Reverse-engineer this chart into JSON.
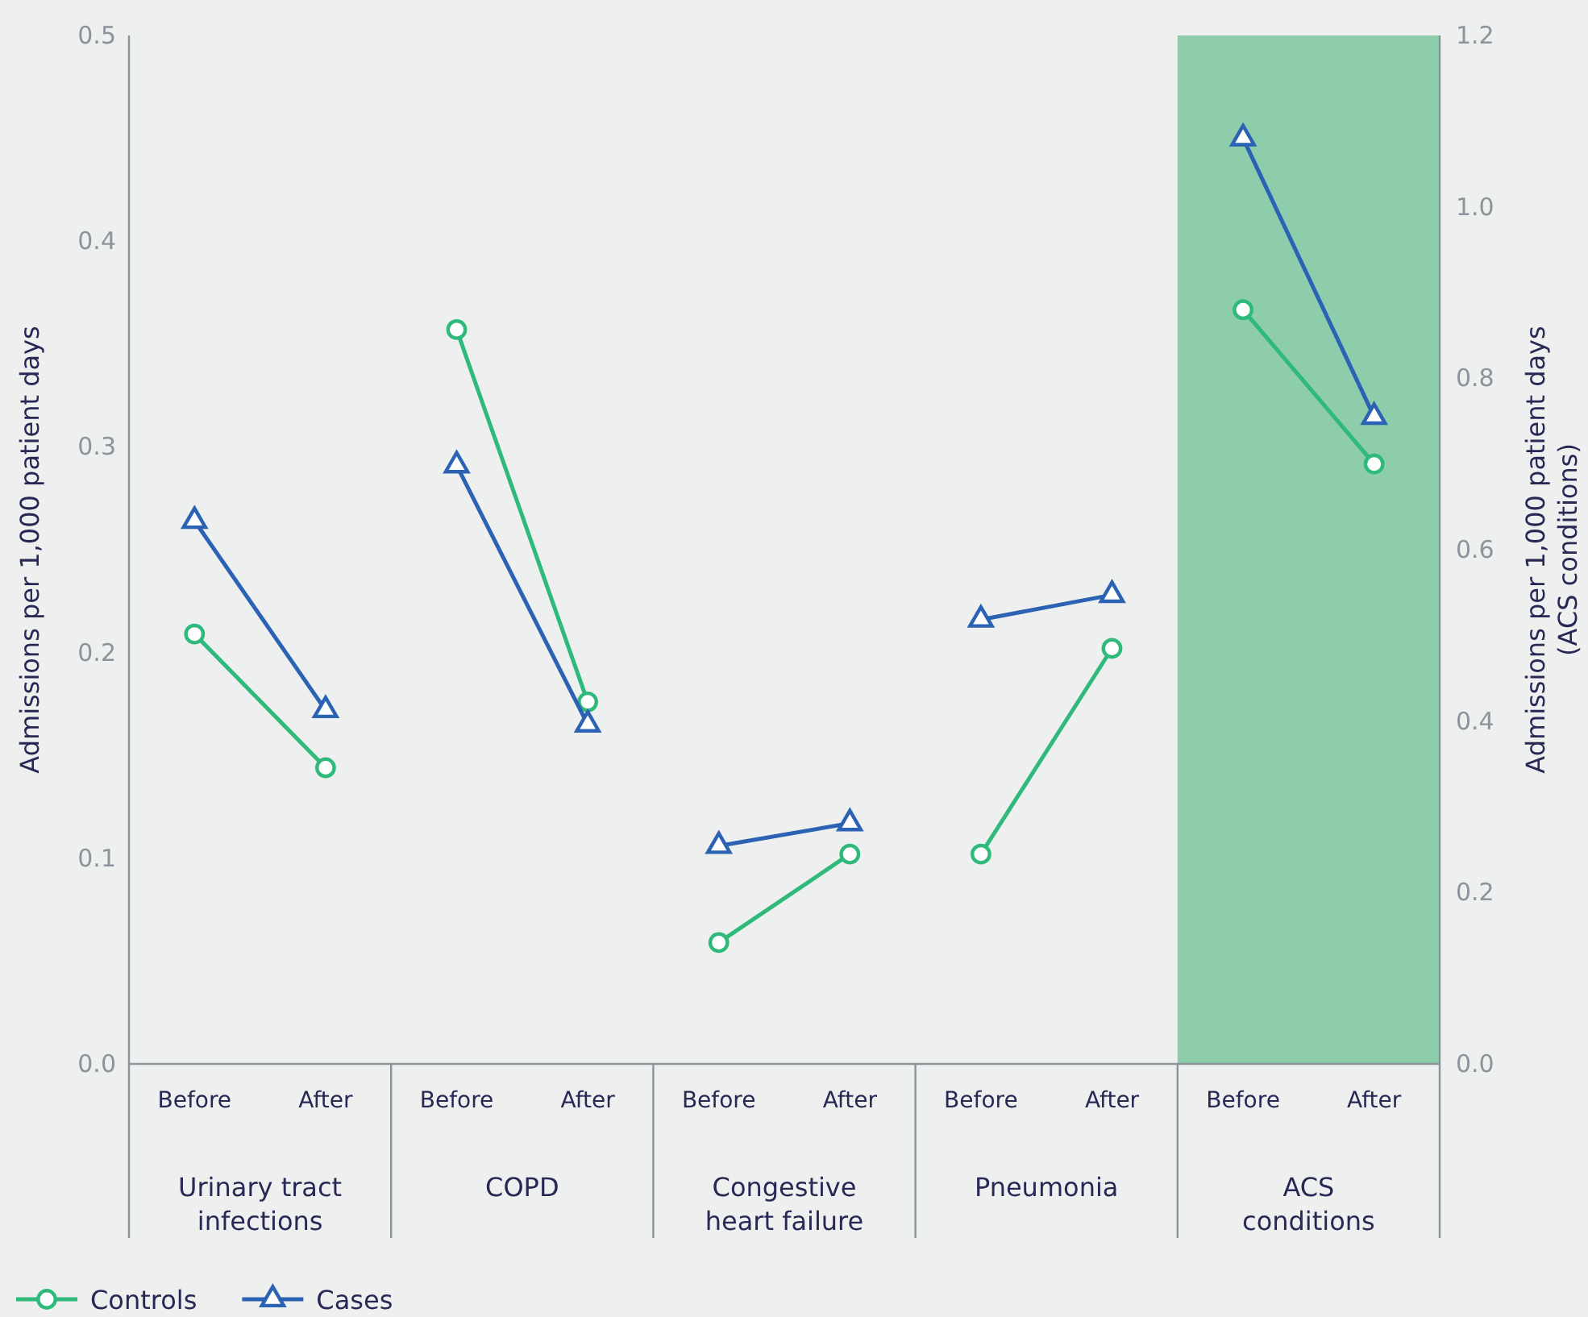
{
  "chart_data": {
    "type": "line",
    "categories": [
      "Before",
      "After",
      "Before",
      "After",
      "Before",
      "After",
      "Before",
      "After",
      "Before",
      "After"
    ],
    "series": [
      {
        "name": "Controls",
        "color": "#2fb97a",
        "marker": "circle",
        "values": [
          0.209,
          0.144,
          0.357,
          0.176,
          0.059,
          0.102,
          0.102,
          0.202,
          null,
          null
        ]
      },
      {
        "name": "Cases",
        "color": "#2b62b4",
        "marker": "triangle",
        "values": [
          0.264,
          0.172,
          0.291,
          0.165,
          0.106,
          0.117,
          0.216,
          0.228,
          null,
          null
        ]
      },
      {
        "color": "#2fb97a",
        "marker": "circle",
        "axis": "y2",
        "values": [
          null,
          null,
          null,
          null,
          null,
          null,
          null,
          null,
          0.88,
          0.7
        ]
      },
      {
        "color": "#2b62b4",
        "marker": "triangle",
        "axis": "y2",
        "values": [
          null,
          null,
          null,
          null,
          null,
          null,
          null,
          null,
          1.08,
          0.755
        ]
      }
    ],
    "annotations": [
      "Urinary tract infections",
      "COPD",
      "Congestive heart failure",
      "Pneumonia",
      "ACS conditions"
    ],
    "ylabel": "Admissions per 1,000 patient days",
    "y2label": "Admissions per 1,000 patient days (ACS conditions)",
    "ylim": [
      0,
      0.5
    ],
    "yticks": [
      {
        "value": 0,
        "label": "0.0"
      },
      0.1,
      0.2,
      0.3,
      0.4,
      0.5
    ],
    "y2lim": [
      0,
      1.2
    ],
    "y2ticks": [
      {
        "value": 0,
        "label": "0.0"
      },
      0.2,
      0.4,
      0.6,
      0.8,
      {
        "value": 1,
        "label": "1.0"
      },
      1.2
    ],
    "legend": "bottom left",
    "grid": false
  }
}
